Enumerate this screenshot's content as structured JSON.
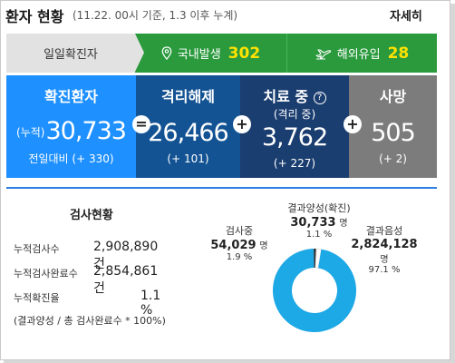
{
  "header": {
    "title": "환자 현황",
    "subtitle": "(11.22. 00시 기준, 1.3 이후 누계)",
    "more": "자세히"
  },
  "daily": {
    "label": "일일확진자",
    "domestic_label": "국내발생",
    "domestic_value": "302",
    "overseas_label": "해외유입",
    "overseas_value": "28"
  },
  "stats": {
    "confirmed": {
      "label": "확진환자",
      "prefix": "(누적)",
      "value": "30,733",
      "delta": "전일대비 (+ 330)"
    },
    "released": {
      "label": "격리해제",
      "value": "26,466",
      "delta": "(+ 101)"
    },
    "treatment": {
      "label": "치료 중",
      "help": "?",
      "sublabel": "(격리 중)",
      "value": "3,762",
      "delta": "(+ 227)"
    },
    "death": {
      "label": "사망",
      "value": "505",
      "delta": "(+ 2)"
    },
    "op_equal": "=",
    "op_plus": "+"
  },
  "tests": {
    "title": "검사현황",
    "rows": [
      {
        "key": "누적검사수",
        "value": "2,908,890 건"
      },
      {
        "key": "누적검사완료수",
        "value": "2,854,861 건"
      },
      {
        "key": "누적확진율",
        "value": "1.1 %"
      }
    ],
    "note": "(결과양성 / 총 검사완료수 * 100%)"
  },
  "chart_data": {
    "type": "pie",
    "categories": [
      "결과양성(확진)",
      "검사중",
      "결과음성"
    ],
    "values": [
      30733,
      54029,
      2824128
    ],
    "percents": [
      1.1,
      1.9,
      97.1
    ],
    "colors": [
      "#2a2a2a",
      "#ffffff",
      "#1da8e6"
    ],
    "labels": {
      "positive": {
        "title": "결과양성(확진)",
        "value": "30,733",
        "unit": "명",
        "pct": "1.1 %"
      },
      "testing": {
        "title": "검사중",
        "value": "54,029",
        "unit": "명",
        "pct": "1.9 %"
      },
      "negative": {
        "title": "결과음성",
        "value": "2,824,128",
        "unit": "명",
        "pct": "97.1 %"
      }
    }
  },
  "colors": {
    "green": "#2a9a3d",
    "yellow": "#ffe200",
    "confirmed": "#1e90ff",
    "released": "#135393",
    "treatment": "#1b3e70",
    "death": "#7c7c7c",
    "donut": "#1da8e6"
  }
}
